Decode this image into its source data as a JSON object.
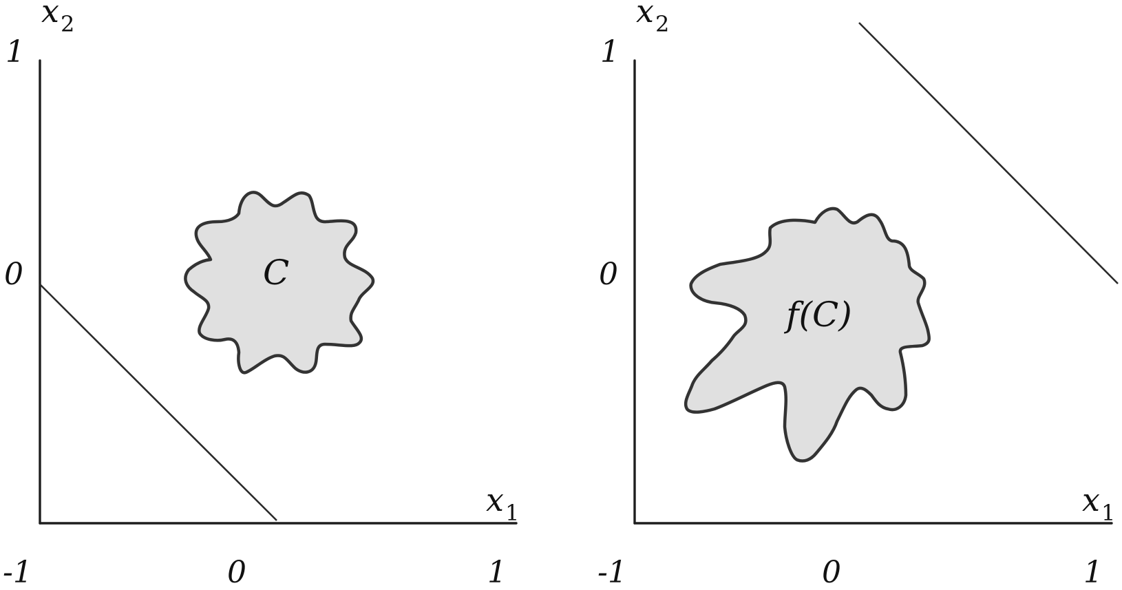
{
  "colors": {
    "axis": "#1e1e1e",
    "outline": "#333333",
    "fill": "#e0e0e0"
  },
  "left_panel": {
    "y_axis_letter": "x",
    "y_axis_sub": "2",
    "x_axis_letter": "x",
    "x_axis_sub": "1",
    "y_tick_top": "1",
    "y_tick_mid": "0",
    "x_tick_left": "-1",
    "x_tick_mid": "0",
    "x_tick_right": "1",
    "set_label": "C"
  },
  "right_panel": {
    "y_axis_letter": "x",
    "y_axis_sub": "2",
    "x_axis_letter": "x",
    "x_axis_sub": "1",
    "y_tick_top": "1",
    "y_tick_mid": "0",
    "x_tick_left": "-1",
    "x_tick_mid": "0",
    "x_tick_right": "1",
    "set_label": "f(C)"
  }
}
